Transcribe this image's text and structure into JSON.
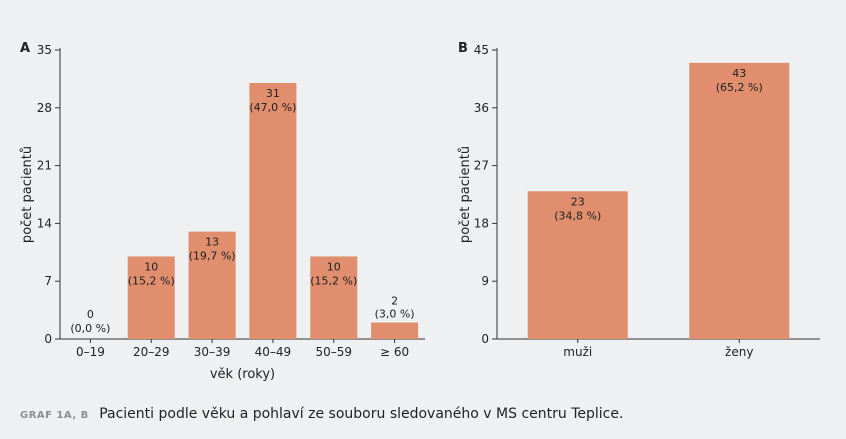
{
  "chart_data": [
    {
      "panel_label": "A",
      "type": "bar",
      "categories": [
        "0–19",
        "20–29",
        "30–39",
        "40–49",
        "50–59",
        "≥ 60"
      ],
      "values": [
        0,
        10,
        13,
        31,
        10,
        2
      ],
      "value_labels": [
        "0",
        "10",
        "13",
        "31",
        "10",
        "2"
      ],
      "pct_labels": [
        "(0,0 %)",
        "(15,2 %)",
        "(19,7 %)",
        "(47,0 %)",
        "(15,2 %)",
        "(3,0 %)"
      ],
      "xlabel": "věk (roky)",
      "ylabel": "počet pacientů",
      "ylim": [
        0,
        35
      ],
      "yticks": [
        0,
        7,
        14,
        21,
        28,
        35
      ],
      "bar_color": "#e08e6e",
      "grid": false
    },
    {
      "panel_label": "B",
      "type": "bar",
      "categories": [
        "muži",
        "ženy"
      ],
      "values": [
        23,
        43
      ],
      "value_labels": [
        "23",
        "43"
      ],
      "pct_labels": [
        "(34,8 %)",
        "(65,2 %)"
      ],
      "xlabel": "",
      "ylabel": "počet pacientů",
      "ylim": [
        0,
        45
      ],
      "yticks": [
        0,
        9,
        18,
        27,
        36,
        45
      ],
      "bar_color": "#e08e6e",
      "grid": false
    }
  ],
  "caption": {
    "label": "GRAF 1A, B",
    "text": "Pacienti podle věku a pohlaví ze souboru sledovaného v MS centru Teplice."
  }
}
